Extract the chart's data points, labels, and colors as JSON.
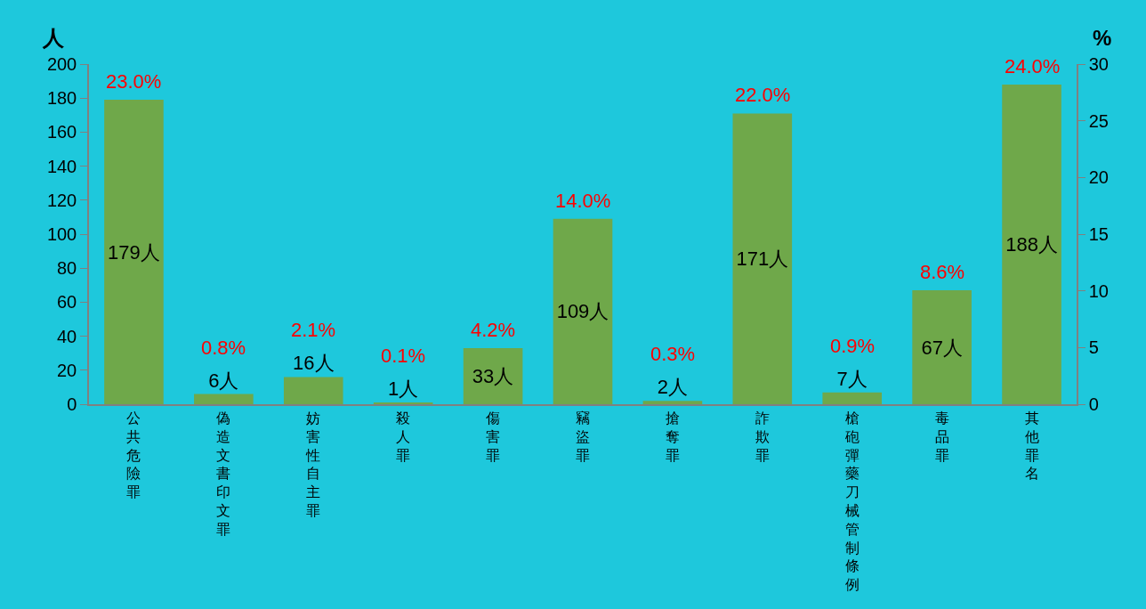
{
  "chart_data": {
    "type": "bar",
    "categories": [
      "公共危險罪",
      "偽造文書印文罪",
      "妨害性自主罪",
      "殺人罪",
      "傷害罪",
      "竊盜罪",
      "搶奪罪",
      "詐欺罪",
      "槍砲彈藥刀械管制條例",
      "毒品罪",
      "其他罪名"
    ],
    "values": [
      179,
      6,
      16,
      1,
      33,
      109,
      2,
      171,
      7,
      67,
      188
    ],
    "value_labels": [
      "179人",
      "6人",
      "16人",
      "1人",
      "33人",
      "109人",
      "2人",
      "171人",
      "7人",
      "67人",
      "188人"
    ],
    "color": "#6fa84a",
    "ylabel": "人",
    "y2label": "%",
    "ylim": [
      0,
      200
    ],
    "yticks": [
      0,
      20,
      40,
      60,
      80,
      100,
      120,
      140,
      160,
      180,
      200
    ],
    "y2lim": [
      0,
      30
    ],
    "y2ticks": [
      0,
      5,
      10,
      15,
      20,
      25,
      30
    ],
    "annotations": [
      {
        "text": "23.0%",
        "x": "公共危險罪",
        "y": 179
      },
      {
        "text": "0.8%",
        "x": "偽造文書印文罪",
        "y": 6
      },
      {
        "text": "2.1%",
        "x": "妨害性自主罪",
        "y": 16
      },
      {
        "text": "0.1%",
        "x": "殺人罪",
        "y": 1
      },
      {
        "text": "4.2%",
        "x": "傷害罪",
        "y": 33
      },
      {
        "text": "14.0%",
        "x": "竊盜罪",
        "y": 109
      },
      {
        "text": "0.3%",
        "x": "搶奪罪",
        "y": 2
      },
      {
        "text": "22.0%",
        "x": "詐欺罪",
        "y": 171
      },
      {
        "text": "0.9%",
        "x": "槍砲彈藥刀械管制條例",
        "y": 7
      },
      {
        "text": "8.6%",
        "x": "毒品罪",
        "y": 67
      },
      {
        "text": "24.0%",
        "x": "其他罪名",
        "y": 188
      }
    ]
  }
}
